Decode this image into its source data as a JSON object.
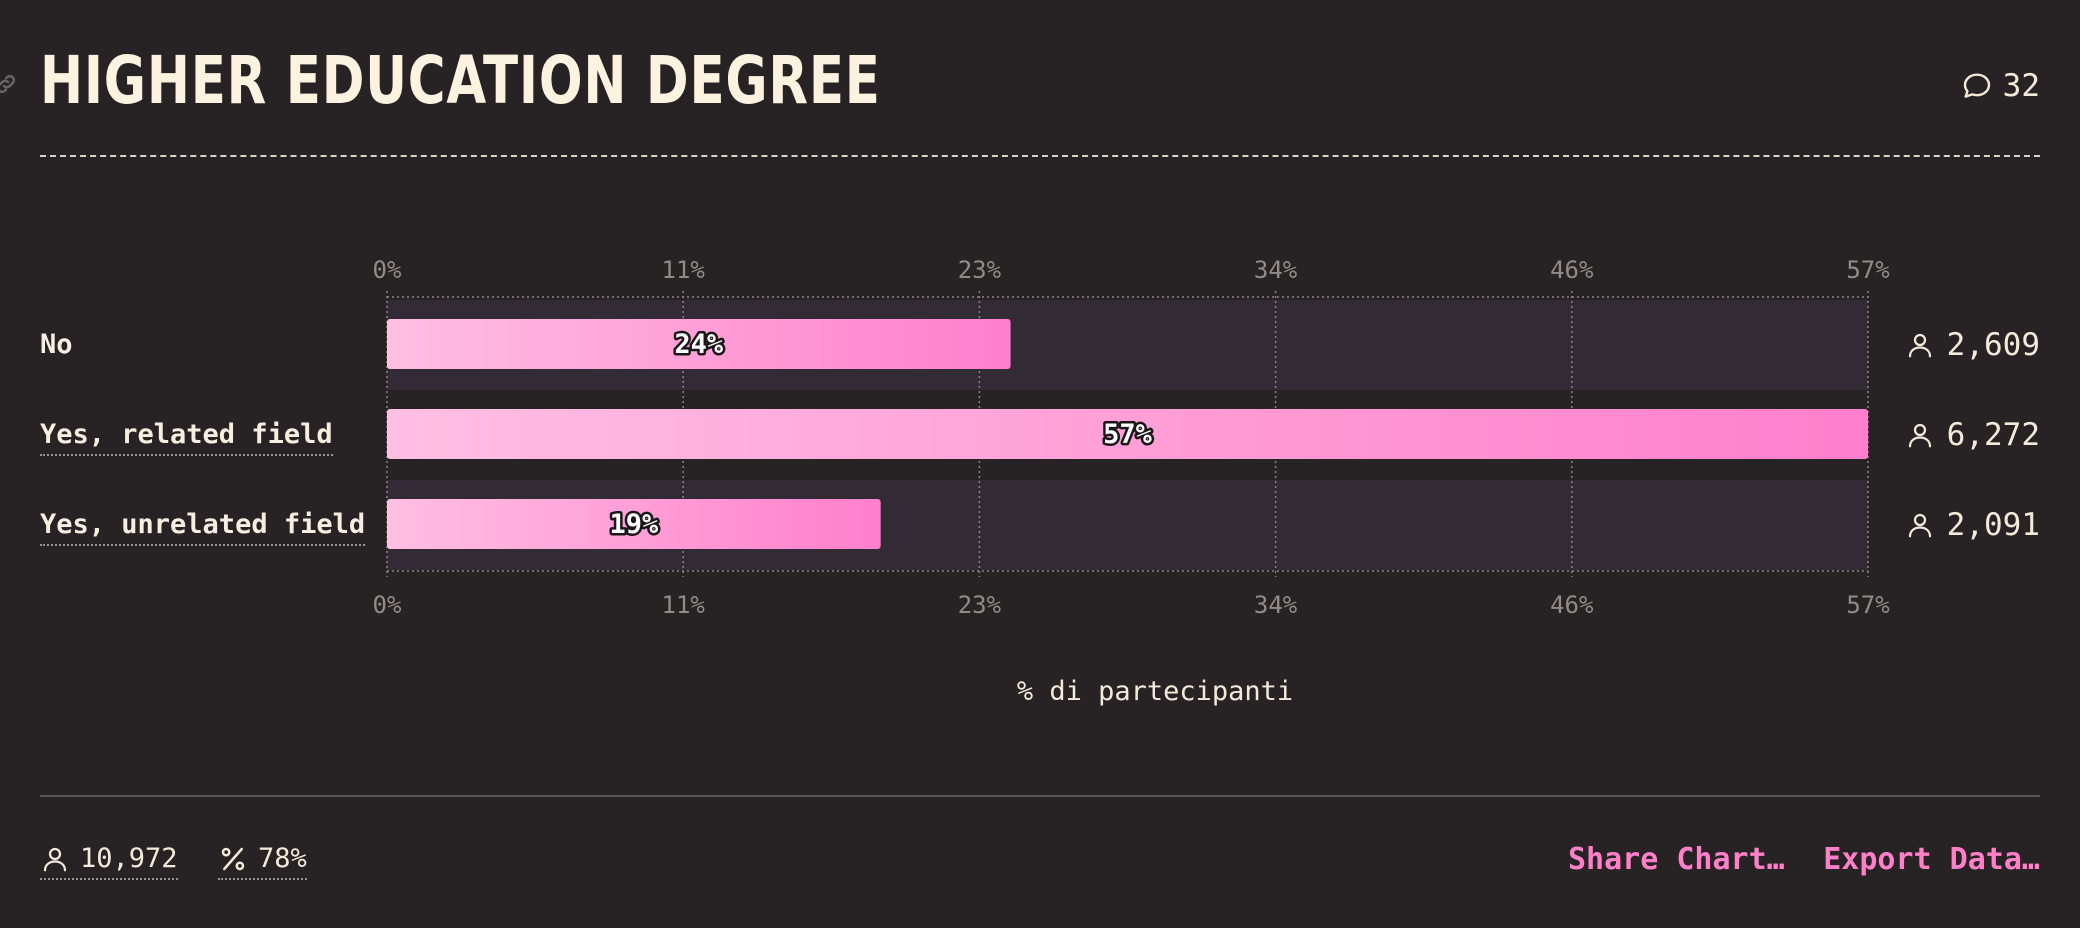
{
  "header": {
    "title": "HIGHER EDUCATION DEGREE",
    "comment_count": "32"
  },
  "chart_data": {
    "type": "bar",
    "orientation": "horizontal",
    "categories": [
      "No",
      "Yes, related field",
      "Yes, unrelated field"
    ],
    "values": [
      24,
      57,
      19
    ],
    "value_labels": [
      "24%",
      "57%",
      "19%"
    ],
    "counts": [
      "2,609",
      "6,272",
      "2,091"
    ],
    "ticks": [
      "0%",
      "11%",
      "23%",
      "34%",
      "46%",
      "57%"
    ],
    "tick_values": [
      0,
      11.4,
      22.8,
      34.2,
      45.6,
      57
    ],
    "xlim": [
      0,
      57
    ],
    "xlabel": "% di partecipanti",
    "grid": true,
    "colors": {
      "bar_start": "#ffbfe3",
      "bar_end": "#ff7fcc",
      "track": "#322b36"
    }
  },
  "footer": {
    "total_respondents": "10,972",
    "percent": "78%",
    "share_label": "Share Chart…",
    "export_label": "Export Data…"
  }
}
